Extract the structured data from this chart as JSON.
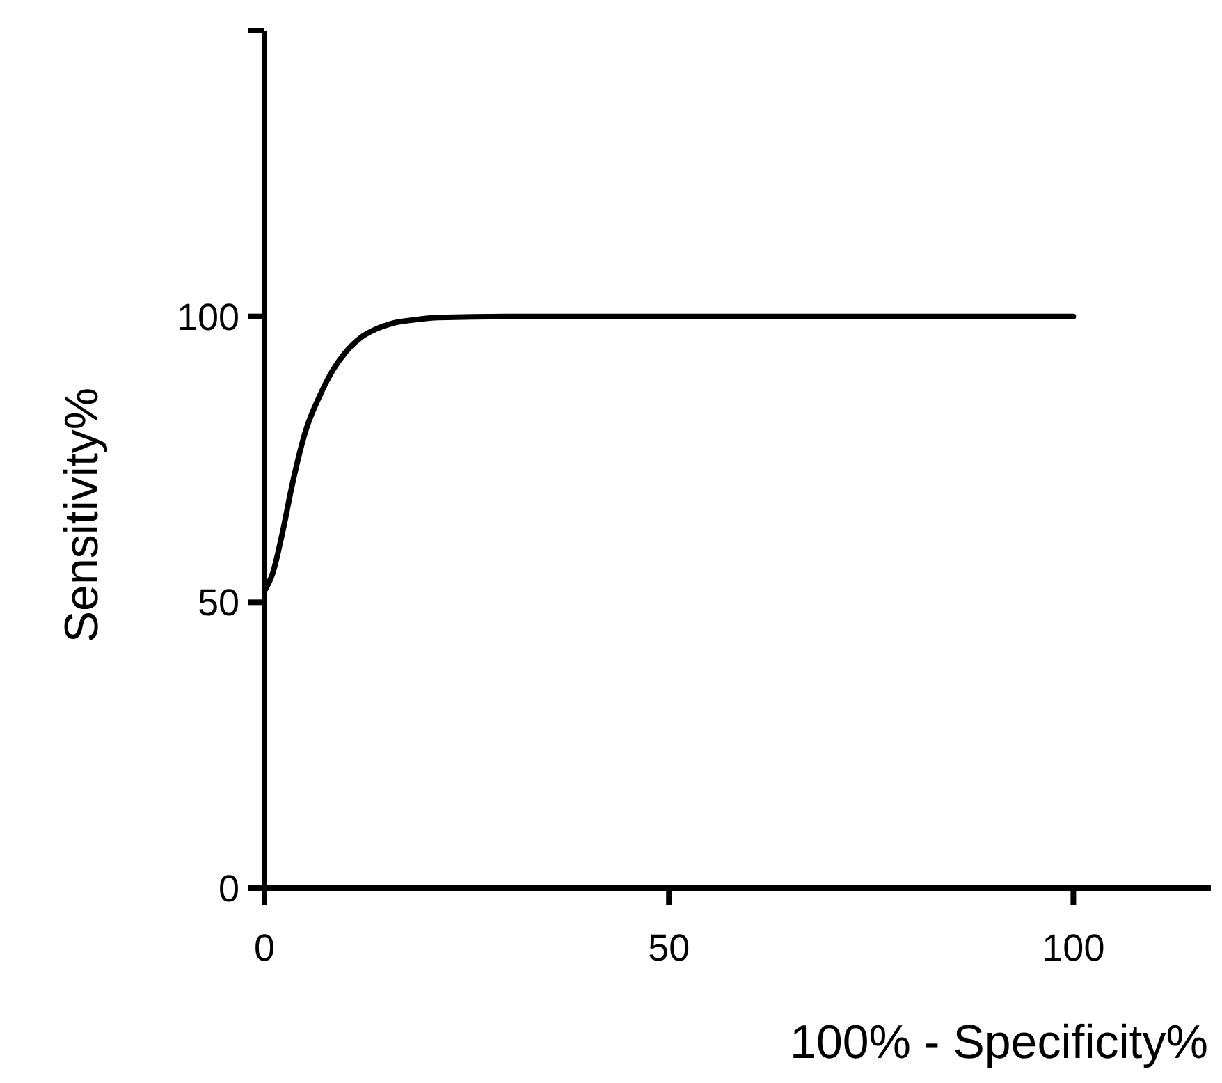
{
  "chart_data": {
    "type": "line",
    "xlabel": "100% - Specificity%",
    "ylabel": "Sensitivity%",
    "x": [
      0,
      1,
      2.2,
      3.5,
      5.1,
      6.8,
      8.5,
      10.2,
      11.9,
      13.8,
      15.8,
      18.5,
      21.5,
      30,
      50,
      75,
      100
    ],
    "series": [
      {
        "color": "#000000",
        "values": [
          52,
          55,
          62,
          71,
          80,
          86,
          90.7,
          94,
          96.3,
          97.8,
          98.8,
          99.4,
          99.8,
          100,
          100,
          100,
          100
        ]
      }
    ],
    "xlim": [
      0,
      117
    ],
    "xticks": [
      0,
      50,
      100
    ],
    "ylim": [
      0,
      150
    ],
    "yticks": [
      0,
      50,
      100,
      {
        "value": 150,
        "label": null
      }
    ],
    "grid": false,
    "marker": "none",
    "line_style": "solid"
  }
}
